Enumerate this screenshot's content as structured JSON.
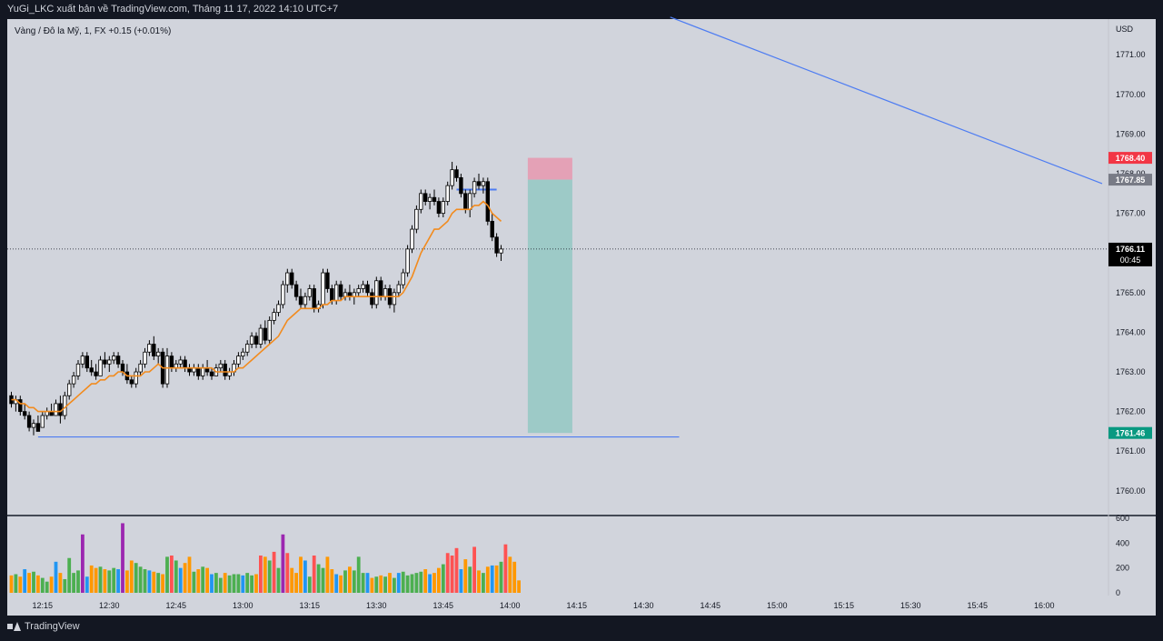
{
  "header": {
    "publish_line": "YuGi_LKC xuất bản về TradingView.com, Tháng 11 17, 2022 14:10 UTC+7"
  },
  "legend": {
    "symbol_line": "Vàng / Đô la Mỹ, 1, FX  +0.15 (+0.01%)"
  },
  "footer": {
    "brand": "TradingView"
  },
  "colors": {
    "background": "#d1d4dc",
    "frame": "#131722",
    "candle_up": "#ffffff",
    "candle_down": "#000000",
    "ema": "#f28b1e",
    "trendline": "#4d7cf2",
    "stop_zone": "#e59bb1",
    "target_zone": "#97c9c4",
    "badge_red": "#f23645",
    "badge_gray": "#787b86",
    "badge_green": "#089981",
    "badge_black": "#000000"
  },
  "chart_data": {
    "type": "candlestick",
    "title": "Vàng / Đô la Mỹ, 1, FX",
    "currency": "USD",
    "ylim": [
      1759.4,
      1771.9
    ],
    "y_ticks": [
      "1771.00",
      "1770.00",
      "1769.00",
      "1768.00",
      "1767.00",
      "1766.00",
      "1765.00",
      "1764.00",
      "1763.00",
      "1762.00",
      "1761.00",
      "1760.00"
    ],
    "x_ticks": [
      "12:15",
      "12:30",
      "12:45",
      "13:00",
      "13:15",
      "13:30",
      "13:45",
      "14:00",
      "14:15",
      "14:30",
      "14:45",
      "15:00",
      "15:15",
      "15:30",
      "15:45",
      "16:00"
    ],
    "x_start": "12:08",
    "bar_minutes": 1,
    "volume_ticks": [
      "600",
      "400",
      "200",
      "0"
    ],
    "volume_ylim": [
      0,
      600
    ],
    "price_labels": [
      {
        "name": "stop",
        "value": "1768.40",
        "color": "red"
      },
      {
        "name": "entry",
        "value": "1767.85",
        "color": "gray"
      },
      {
        "name": "last",
        "value": "1766.11",
        "countdown": "00:45",
        "color": "black"
      },
      {
        "name": "target",
        "value": "1761.46",
        "color": "green"
      }
    ],
    "short_position": {
      "entry": 1767.85,
      "stop": 1768.4,
      "target": 1761.46,
      "from": "14:04",
      "to": "14:14"
    },
    "lines": [
      {
        "kind": "diagonal-trend",
        "from_time": "14:36",
        "from_price": 1771.95,
        "to_time": "16:13",
        "to_price": 1767.75
      },
      {
        "kind": "support",
        "from_time": "12:14",
        "to_time": "14:38",
        "price": 1761.36
      },
      {
        "kind": "resistance",
        "from_time": "13:48",
        "to_time": "13:57",
        "price": 1767.6
      }
    ],
    "candles": [
      [
        1762.4,
        1762.5,
        1762.1,
        1762.2
      ],
      [
        1762.2,
        1762.4,
        1762.0,
        1762.3
      ],
      [
        1762.3,
        1762.4,
        1761.9,
        1762.0
      ],
      [
        1762.0,
        1762.2,
        1761.8,
        1761.9
      ],
      [
        1761.9,
        1762.0,
        1761.5,
        1761.6
      ],
      [
        1761.6,
        1761.8,
        1761.4,
        1761.7
      ],
      [
        1761.7,
        1761.9,
        1761.5,
        1761.5
      ],
      [
        1761.6,
        1762.0,
        1761.6,
        1761.9
      ],
      [
        1761.9,
        1762.1,
        1761.8,
        1762.0
      ],
      [
        1762.0,
        1762.2,
        1761.9,
        1761.9
      ],
      [
        1761.9,
        1762.3,
        1761.9,
        1762.2
      ],
      [
        1762.2,
        1762.4,
        1761.7,
        1761.9
      ],
      [
        1761.9,
        1762.5,
        1761.8,
        1762.4
      ],
      [
        1762.4,
        1762.8,
        1762.3,
        1762.7
      ],
      [
        1762.7,
        1763.0,
        1762.6,
        1762.9
      ],
      [
        1762.9,
        1763.3,
        1762.8,
        1763.2
      ],
      [
        1763.2,
        1763.5,
        1763.1,
        1763.4
      ],
      [
        1763.4,
        1763.5,
        1763.0,
        1763.1
      ],
      [
        1763.1,
        1763.3,
        1762.9,
        1763.0
      ],
      [
        1763.0,
        1763.2,
        1762.8,
        1762.9
      ],
      [
        1762.9,
        1763.4,
        1762.9,
        1763.3
      ],
      [
        1763.3,
        1763.5,
        1763.1,
        1763.2
      ],
      [
        1763.2,
        1763.4,
        1763.0,
        1763.3
      ],
      [
        1763.3,
        1763.5,
        1763.2,
        1763.4
      ],
      [
        1763.4,
        1763.5,
        1763.1,
        1763.2
      ],
      [
        1763.2,
        1763.3,
        1762.9,
        1763.0
      ],
      [
        1763.0,
        1763.2,
        1762.7,
        1762.8
      ],
      [
        1762.8,
        1762.9,
        1762.6,
        1762.7
      ],
      [
        1762.7,
        1763.1,
        1762.6,
        1763.0
      ],
      [
        1763.0,
        1763.3,
        1762.9,
        1763.2
      ],
      [
        1763.2,
        1763.6,
        1763.1,
        1763.5
      ],
      [
        1763.5,
        1763.8,
        1763.4,
        1763.7
      ],
      [
        1763.7,
        1763.9,
        1763.3,
        1763.4
      ],
      [
        1763.4,
        1763.6,
        1763.2,
        1763.5
      ],
      [
        1763.5,
        1763.6,
        1762.6,
        1762.7
      ],
      [
        1762.7,
        1763.6,
        1762.6,
        1763.4
      ],
      [
        1763.4,
        1763.5,
        1763.0,
        1763.1
      ],
      [
        1763.1,
        1763.3,
        1763.0,
        1763.2
      ],
      [
        1763.2,
        1763.4,
        1763.1,
        1763.3
      ],
      [
        1763.3,
        1763.4,
        1763.0,
        1763.1
      ],
      [
        1763.1,
        1763.2,
        1762.9,
        1763.0
      ],
      [
        1763.0,
        1763.2,
        1762.9,
        1763.1
      ],
      [
        1763.1,
        1763.2,
        1762.8,
        1762.9
      ],
      [
        1762.9,
        1763.2,
        1762.8,
        1763.1
      ],
      [
        1763.1,
        1763.3,
        1762.9,
        1763.0
      ],
      [
        1763.0,
        1763.1,
        1762.8,
        1762.9
      ],
      [
        1762.9,
        1763.2,
        1762.9,
        1763.1
      ],
      [
        1763.1,
        1763.3,
        1763.0,
        1763.2
      ],
      [
        1763.2,
        1763.3,
        1762.8,
        1762.9
      ],
      [
        1762.9,
        1763.1,
        1762.8,
        1763.0
      ],
      [
        1763.0,
        1763.3,
        1762.9,
        1763.2
      ],
      [
        1763.2,
        1763.5,
        1763.1,
        1763.4
      ],
      [
        1763.4,
        1763.6,
        1763.3,
        1763.5
      ],
      [
        1763.5,
        1763.8,
        1763.4,
        1763.7
      ],
      [
        1763.7,
        1764.0,
        1763.6,
        1763.9
      ],
      [
        1763.9,
        1764.0,
        1763.6,
        1763.7
      ],
      [
        1763.7,
        1764.2,
        1763.6,
        1764.1
      ],
      [
        1764.1,
        1764.3,
        1763.7,
        1763.8
      ],
      [
        1763.8,
        1764.4,
        1763.7,
        1764.3
      ],
      [
        1764.3,
        1764.6,
        1764.2,
        1764.5
      ],
      [
        1764.5,
        1764.8,
        1764.4,
        1764.7
      ],
      [
        1764.7,
        1765.3,
        1764.6,
        1765.2
      ],
      [
        1765.2,
        1765.6,
        1765.0,
        1765.5
      ],
      [
        1765.5,
        1765.6,
        1765.1,
        1765.2
      ],
      [
        1765.2,
        1765.3,
        1764.8,
        1764.9
      ],
      [
        1764.9,
        1765.1,
        1764.6,
        1764.7
      ],
      [
        1764.7,
        1765.0,
        1764.6,
        1764.9
      ],
      [
        1764.9,
        1765.2,
        1764.8,
        1765.1
      ],
      [
        1765.1,
        1765.2,
        1764.5,
        1764.6
      ],
      [
        1764.6,
        1764.8,
        1764.5,
        1764.7
      ],
      [
        1764.7,
        1765.6,
        1764.6,
        1765.5
      ],
      [
        1765.5,
        1765.6,
        1765.0,
        1765.1
      ],
      [
        1765.1,
        1765.2,
        1764.7,
        1764.8
      ],
      [
        1764.8,
        1765.3,
        1764.7,
        1765.2
      ],
      [
        1765.2,
        1765.3,
        1764.8,
        1764.9
      ],
      [
        1764.9,
        1765.1,
        1764.8,
        1765.0
      ],
      [
        1765.0,
        1765.2,
        1764.8,
        1764.9
      ],
      [
        1764.9,
        1765.1,
        1764.7,
        1765.0
      ],
      [
        1765.0,
        1765.2,
        1764.9,
        1765.1
      ],
      [
        1765.1,
        1765.3,
        1765.0,
        1765.2
      ],
      [
        1765.2,
        1765.3,
        1764.9,
        1765.0
      ],
      [
        1765.0,
        1765.1,
        1764.6,
        1764.7
      ],
      [
        1764.7,
        1765.4,
        1764.6,
        1765.3
      ],
      [
        1765.3,
        1765.4,
        1764.8,
        1764.9
      ],
      [
        1764.9,
        1765.2,
        1764.8,
        1765.1
      ],
      [
        1765.1,
        1765.2,
        1764.6,
        1764.7
      ],
      [
        1764.7,
        1765.1,
        1764.5,
        1765.0
      ],
      [
        1765.0,
        1765.3,
        1764.9,
        1765.2
      ],
      [
        1765.2,
        1765.6,
        1765.1,
        1765.5
      ],
      [
        1765.5,
        1766.2,
        1765.4,
        1766.1
      ],
      [
        1766.1,
        1766.7,
        1766.0,
        1766.6
      ],
      [
        1766.6,
        1767.2,
        1766.5,
        1767.1
      ],
      [
        1767.1,
        1767.6,
        1767.0,
        1767.5
      ],
      [
        1767.5,
        1767.6,
        1767.2,
        1767.3
      ],
      [
        1767.3,
        1767.5,
        1767.1,
        1767.4
      ],
      [
        1767.4,
        1767.6,
        1767.2,
        1767.3
      ],
      [
        1767.3,
        1767.4,
        1766.9,
        1767.0
      ],
      [
        1767.0,
        1767.4,
        1766.9,
        1767.3
      ],
      [
        1767.3,
        1767.8,
        1767.2,
        1767.7
      ],
      [
        1767.7,
        1768.3,
        1767.6,
        1768.1
      ],
      [
        1768.1,
        1768.2,
        1767.8,
        1767.9
      ],
      [
        1767.9,
        1768.0,
        1767.4,
        1767.5
      ],
      [
        1767.5,
        1767.6,
        1767.0,
        1767.1
      ],
      [
        1767.1,
        1767.6,
        1766.9,
        1767.5
      ],
      [
        1767.5,
        1767.9,
        1767.4,
        1767.8
      ],
      [
        1767.8,
        1768.0,
        1767.6,
        1767.7
      ],
      [
        1767.7,
        1767.9,
        1767.5,
        1767.8
      ],
      [
        1767.8,
        1767.9,
        1766.7,
        1766.8
      ],
      [
        1766.8,
        1767.0,
        1766.3,
        1766.4
      ],
      [
        1766.4,
        1766.5,
        1765.9,
        1766.0
      ],
      [
        1766.0,
        1766.2,
        1765.8,
        1766.1
      ]
    ],
    "ema": [
      1762.3,
      1762.3,
      1762.2,
      1762.2,
      1762.1,
      1762.1,
      1762.0,
      1762.0,
      1762.0,
      1762.0,
      1762.0,
      1762.0,
      1762.1,
      1762.2,
      1762.3,
      1762.4,
      1762.5,
      1762.6,
      1762.7,
      1762.7,
      1762.8,
      1762.8,
      1762.9,
      1762.9,
      1763.0,
      1763.0,
      1762.9,
      1762.9,
      1762.9,
      1762.9,
      1763.0,
      1763.0,
      1763.1,
      1763.2,
      1763.1,
      1763.1,
      1763.1,
      1763.1,
      1763.1,
      1763.1,
      1763.1,
      1763.1,
      1763.1,
      1763.1,
      1763.1,
      1763.1,
      1763.0,
      1763.0,
      1763.0,
      1763.0,
      1763.0,
      1763.1,
      1763.1,
      1763.2,
      1763.3,
      1763.4,
      1763.5,
      1763.6,
      1763.7,
      1763.8,
      1763.9,
      1764.1,
      1764.3,
      1764.4,
      1764.5,
      1764.6,
      1764.6,
      1764.6,
      1764.6,
      1764.6,
      1764.7,
      1764.7,
      1764.8,
      1764.8,
      1764.8,
      1764.9,
      1764.9,
      1764.9,
      1764.9,
      1764.9,
      1764.9,
      1764.9,
      1764.9,
      1764.9,
      1764.9,
      1764.9,
      1764.9,
      1764.9,
      1765.0,
      1765.2,
      1765.4,
      1765.7,
      1766.0,
      1766.2,
      1766.4,
      1766.6,
      1766.6,
      1766.7,
      1766.8,
      1767.0,
      1767.1,
      1767.1,
      1767.1,
      1767.1,
      1767.2,
      1767.2,
      1767.3,
      1767.2,
      1767.0,
      1766.9,
      1766.8
    ],
    "volumes": [
      140,
      150,
      130,
      190,
      160,
      170,
      140,
      120,
      90,
      130,
      250,
      160,
      110,
      280,
      160,
      180,
      470,
      130,
      220,
      200,
      210,
      190,
      180,
      200,
      190,
      560,
      180,
      260,
      240,
      210,
      190,
      180,
      170,
      160,
      150,
      290,
      300,
      260,
      200,
      240,
      290,
      170,
      190,
      210,
      200,
      150,
      160,
      120,
      160,
      140,
      150,
      150,
      140,
      160,
      140,
      150,
      300,
      290,
      260,
      330,
      200,
      470,
      320,
      200,
      160,
      290,
      260,
      130,
      300,
      230,
      200,
      290,
      190,
      150,
      140,
      180,
      210,
      180,
      290,
      160,
      160,
      120,
      130,
      140,
      130,
      160,
      120,
      160,
      170,
      140,
      150,
      160,
      170,
      190,
      150,
      160,
      200,
      230,
      320,
      300,
      360,
      190,
      270,
      210,
      370,
      180,
      160,
      210,
      220,
      220,
      250,
      390,
      290,
      250,
      100
    ]
  }
}
